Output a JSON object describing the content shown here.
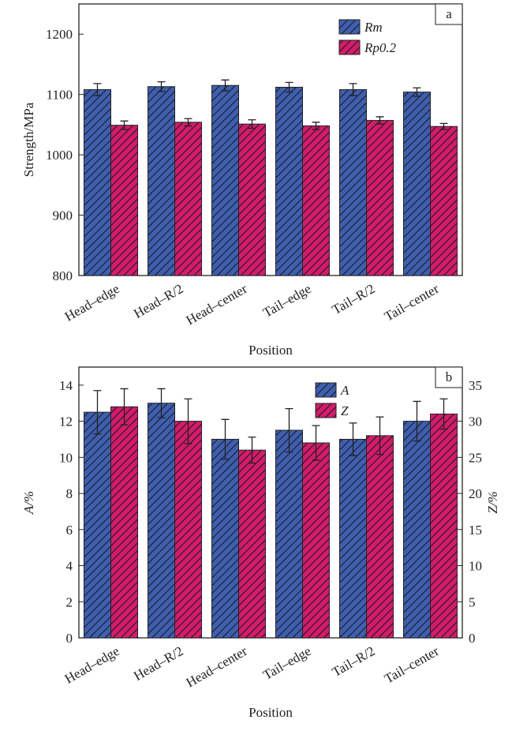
{
  "chart_data": [
    {
      "type": "bar",
      "panel_label": "a",
      "xlabel": "Position",
      "ylabel": "Strength/MPa",
      "categories": [
        "Head–edge",
        "Head–R/2",
        "Head–center",
        "Tail–edge",
        "Tail–R/2",
        "Tail–center"
      ],
      "series": [
        {
          "name": "Rm",
          "color": "#3f5fae",
          "values": [
            1108,
            1113,
            1115,
            1112,
            1108,
            1104
          ],
          "errors": [
            10,
            8,
            9,
            8,
            10,
            7
          ]
        },
        {
          "name": "Rp0.2",
          "color": "#d41c68",
          "values": [
            1049,
            1054,
            1051,
            1048,
            1057,
            1047
          ],
          "errors": [
            7,
            6,
            7,
            6,
            6,
            5
          ]
        }
      ],
      "ylim": [
        800,
        1250
      ],
      "yticks": [
        800,
        900,
        1000,
        1100,
        1200
      ]
    },
    {
      "type": "bar",
      "panel_label": "b",
      "xlabel": "Position",
      "ylabel": "A/%",
      "y2label": "Z/%",
      "categories": [
        "Head–edge",
        "Head–R/2",
        "Head–center",
        "Tail–edge",
        "Tail–R/2",
        "Tail–center"
      ],
      "series": [
        {
          "name": "A",
          "color": "#3f5fae",
          "values": [
            12.5,
            13.0,
            11.0,
            11.5,
            11.0,
            12.0
          ],
          "errors": [
            1.2,
            0.8,
            1.1,
            1.2,
            0.9,
            1.1
          ]
        },
        {
          "name": "Z",
          "color": "#d41c68",
          "axis": "y2",
          "values": [
            32,
            30,
            26,
            27,
            28,
            31
          ],
          "errors": [
            2.5,
            3.1,
            1.8,
            2.4,
            2.6,
            2.1
          ]
        }
      ],
      "ylim": [
        0,
        15
      ],
      "yticks": [
        0,
        2,
        4,
        6,
        8,
        10,
        12,
        14
      ],
      "y2lim": [
        0,
        37.5
      ],
      "y2ticks": [
        0,
        5,
        10,
        15,
        20,
        25,
        30,
        35
      ]
    }
  ]
}
